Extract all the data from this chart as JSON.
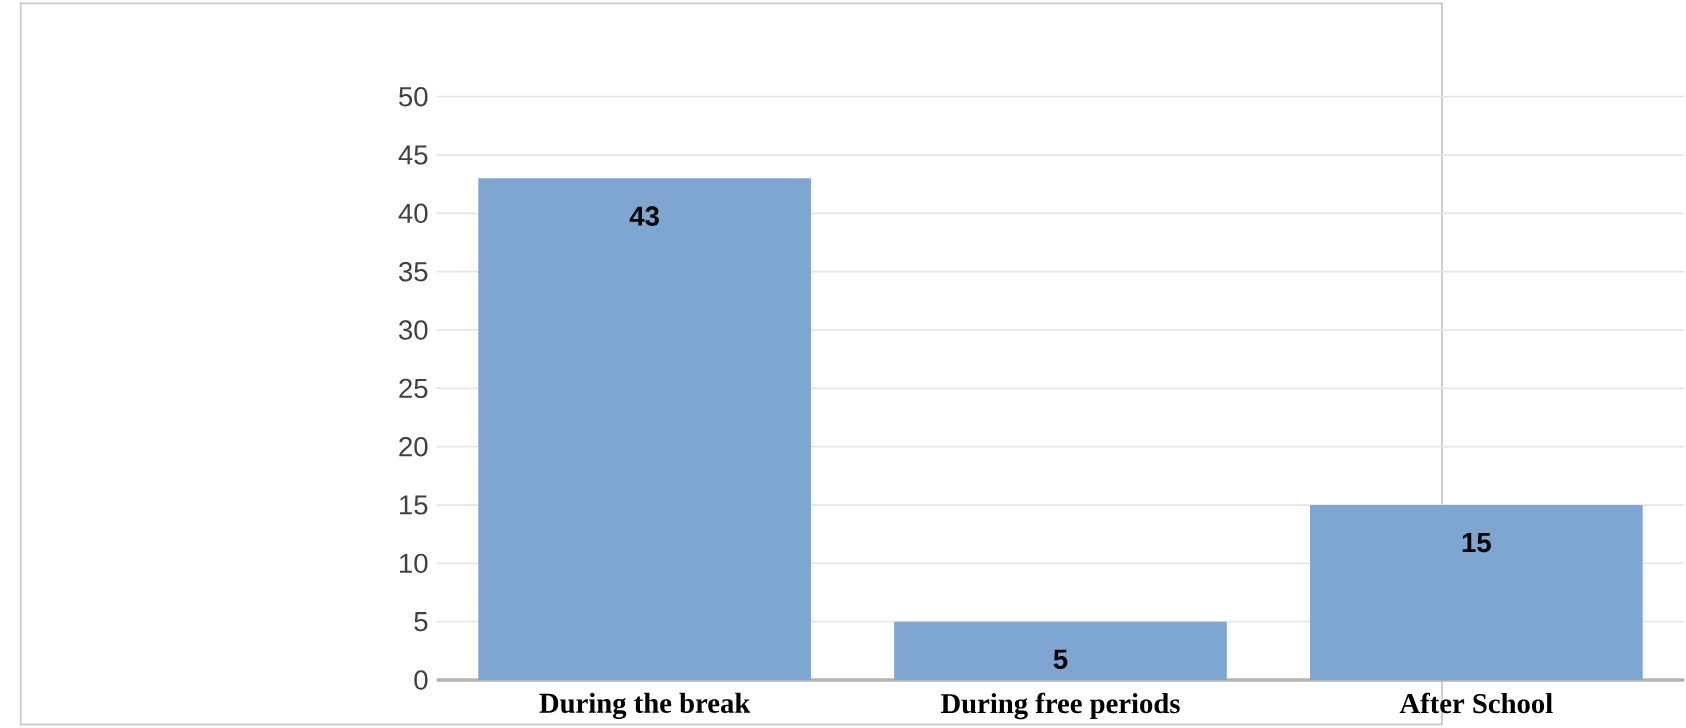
{
  "chart_data": {
    "type": "bar",
    "categories": [
      "During the break",
      "During free periods",
      "After School"
    ],
    "values": [
      43,
      5,
      15
    ],
    "color": "#7fa6d1",
    "ylim": [
      0,
      50
    ],
    "yticks": [
      0,
      5,
      10,
      15,
      20,
      25,
      30,
      35,
      40,
      45,
      50
    ],
    "grid": "y",
    "data_labels": true
  }
}
